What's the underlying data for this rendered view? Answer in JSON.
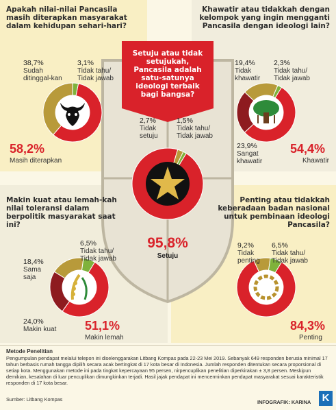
{
  "colors": {
    "red": "#d9222a",
    "gold": "#b89a3a",
    "green": "#7fb23b",
    "dark_red": "#8e1b1f",
    "cream": "#fbf7e6",
    "yellow": "#f7e27a"
  },
  "icons": {
    "q1": "bull-head-icon",
    "q2": "banyan-tree-icon",
    "main": "star-icon",
    "q3": "rice-cotton-icon",
    "q4": "chain-icon"
  },
  "chart_data": [
    {
      "type": "pie",
      "question": "Apakah nilai-nilai Pancasila masih diterapkan masyarakat dalam kehidupan sehari-hari?",
      "slices": [
        {
          "label": "Masih diterapkan",
          "value": 58.2,
          "display": "58,2%"
        },
        {
          "label": "Sudah ditinggal-kan",
          "value": 38.7,
          "display": "38,7%"
        },
        {
          "label": "Tidak tahu/ Tidak jawab",
          "value": 3.1,
          "display": "3,1%"
        }
      ]
    },
    {
      "type": "pie",
      "question": "Khawatir atau tidakkah dengan kelompok yang ingin mengganti Pancasila dengan ideologi lain?",
      "slices": [
        {
          "label": "Khawatir",
          "value": 54.4,
          "display": "54,4%"
        },
        {
          "label": "Sangat khawatir",
          "value": 23.9,
          "display": "23,9%"
        },
        {
          "label": "Tidak khawatir",
          "value": 19.4,
          "display": "19,4%"
        },
        {
          "label": "Tidak tahu/ Tidak jawab",
          "value": 2.3,
          "display": "2,3%"
        }
      ]
    },
    {
      "type": "pie",
      "question": "Setuju atau tidak setujukah, Pancasila adalah satu-satunya ideologi terbaik bagi bangsa?",
      "slices": [
        {
          "label": "Setuju",
          "value": 95.8,
          "display": "95,8%"
        },
        {
          "label": "Tidak setuju",
          "value": 2.7,
          "display": "2,7%"
        },
        {
          "label": "Tidak tahu/ Tidak jawab",
          "value": 1.5,
          "display": "1,5%"
        }
      ]
    },
    {
      "type": "pie",
      "question": "Makin kuat atau lemah-kah nilai toleransi dalam berpolitik masyarakat saat ini?",
      "slices": [
        {
          "label": "Makin lemah",
          "value": 51.1,
          "display": "51,1%"
        },
        {
          "label": "Makin kuat",
          "value": 24.0,
          "display": "24,0%"
        },
        {
          "label": "Sama saja",
          "value": 18.4,
          "display": "18,4%"
        },
        {
          "label": "Tidak tahu/ Tidak jawab",
          "value": 6.5,
          "display": "6,5%"
        }
      ]
    },
    {
      "type": "pie",
      "question": "Penting atau tidakkah keberadaan badan nasional untuk pembinaan ideologi Pancasila?",
      "slices": [
        {
          "label": "Penting",
          "value": 84.3,
          "display": "84,3%"
        },
        {
          "label": "Tidak penting",
          "value": 9.2,
          "display": "9,2%"
        },
        {
          "label": "Tidak tahu/ Tidak jawab",
          "value": 6.5,
          "display": "6,5%"
        }
      ]
    }
  ],
  "method": {
    "title": "Metode Penelitian",
    "text": "Pengumpulan pendapat melalui telepon ini diselenggarakan Litbang Kompas pada 22-23 Mei 2019. Sebanyak 649 responden berusia minimal 17 tahun berbasis rumah tangga dipilih secara acak bertingkat di 17 kota besar di Indonesia. Jumlah responden ditentukan secara proporsional di setiap kota. Menggunakan metode ini pada tingkat kepercayaan 95 persen, nirpencuplikan penelitian diperkirakan ± 3,8 persen. Meskipun demikian, kesalahan di luar pencuplikan dimungkinkan terjadi. Hasil jajak pendapat ini mencerminkan pendapat masyarakat sesuai karakteristik responden di 17 kota besar.",
    "source": "Sumber: Litbang Kompas"
  },
  "credit": "INFOGRAFIK: KARINA",
  "logo": "K"
}
